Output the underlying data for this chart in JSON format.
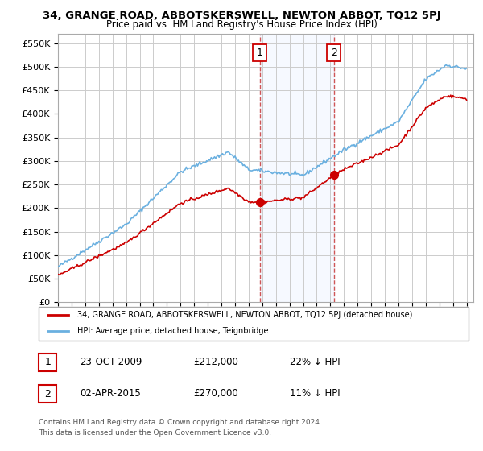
{
  "title": "34, GRANGE ROAD, ABBOTSKERSWELL, NEWTON ABBOT, TQ12 5PJ",
  "subtitle": "Price paid vs. HM Land Registry's House Price Index (HPI)",
  "legend_line1": "34, GRANGE ROAD, ABBOTSKERSWELL, NEWTON ABBOT, TQ12 5PJ (detached house)",
  "legend_line2": "HPI: Average price, detached house, Teignbridge",
  "annotation1_label": "1",
  "annotation1_date": "23-OCT-2009",
  "annotation1_price": "£212,000",
  "annotation1_hpi": "22% ↓ HPI",
  "annotation2_label": "2",
  "annotation2_date": "02-APR-2015",
  "annotation2_price": "£270,000",
  "annotation2_hpi": "11% ↓ HPI",
  "footer1": "Contains HM Land Registry data © Crown copyright and database right 2024.",
  "footer2": "This data is licensed under the Open Government Licence v3.0.",
  "sale1_year": 2009.81,
  "sale1_price": 212000,
  "sale2_year": 2015.25,
  "sale2_price": 270000,
  "vline1_x": 2009.81,
  "vline2_x": 2015.25,
  "hpi_color": "#6ab0e0",
  "property_color": "#cc0000",
  "vline_color": "#cc0000",
  "background_color": "#ffffff",
  "grid_color": "#cccccc",
  "ylim": [
    0,
    570000
  ],
  "xlim_start": 1995,
  "xlim_end": 2025.5,
  "yticks": [
    0,
    50000,
    100000,
    150000,
    200000,
    250000,
    300000,
    350000,
    400000,
    450000,
    500000,
    550000
  ],
  "ytick_labels": [
    "£0",
    "£50K",
    "£100K",
    "£150K",
    "£200K",
    "£250K",
    "£300K",
    "£350K",
    "£400K",
    "£450K",
    "£500K",
    "£550K"
  ],
  "xticks": [
    1995,
    1996,
    1997,
    1998,
    1999,
    2000,
    2001,
    2002,
    2003,
    2004,
    2005,
    2006,
    2007,
    2008,
    2009,
    2010,
    2011,
    2012,
    2013,
    2014,
    2015,
    2016,
    2017,
    2018,
    2019,
    2020,
    2021,
    2022,
    2023,
    2024,
    2025
  ]
}
